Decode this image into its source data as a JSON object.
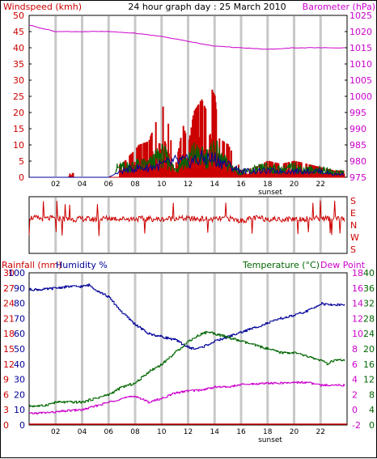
{
  "chart_data": [
    {
      "type": "bar",
      "title": "24 hour graph day : 25 March 2010",
      "left_axis_label": "Windspeed (kmh)",
      "right_axis_label": "Barometer (hPa)",
      "left_ylim": [
        0,
        50
      ],
      "right_ylim": [
        975,
        1025
      ],
      "left_ticks": [
        "0",
        "5",
        "10",
        "15",
        "20",
        "25",
        "30",
        "35",
        "40",
        "45",
        "50"
      ],
      "right_ticks": [
        "975",
        "980",
        "985",
        "990",
        "995",
        "1000",
        "1005",
        "1010",
        "1015",
        "1020",
        "1025"
      ],
      "x_ticks": [
        "02",
        "04",
        "06",
        "08",
        "10",
        "12",
        "14",
        "16",
        "18",
        "20",
        "22"
      ],
      "x_range_hours": [
        0,
        24
      ],
      "sunset_label": "sunset",
      "grid": true,
      "colors": {
        "gust": "#cc0000",
        "wind": "#006600",
        "avg": "#000099",
        "barometer": "#cc00cc"
      },
      "series": [
        {
          "key": "barometer",
          "x": [
            0,
            2,
            4,
            6,
            8,
            10,
            12,
            14,
            16,
            18,
            20,
            22,
            23.5
          ],
          "values": [
            1022,
            1020,
            1020,
            1020,
            1019.5,
            1018.5,
            1017,
            1015.5,
            1015,
            1014.5,
            1015,
            1015,
            1015
          ]
        },
        {
          "key": "gust",
          "x": [
            3,
            7,
            8.3,
            9,
            10,
            10.3,
            11,
            11.6,
            12,
            12.4,
            13,
            13.3,
            13.8,
            14,
            14.3,
            15,
            16,
            17,
            18,
            19,
            20,
            21,
            22,
            23
          ],
          "values": [
            1,
            4,
            10,
            11,
            22,
            21,
            3,
            16,
            10,
            20,
            24,
            21,
            27,
            25,
            12,
            10,
            2,
            3,
            5,
            4,
            5,
            4,
            3,
            2
          ]
        },
        {
          "key": "wind",
          "x": [
            3,
            7,
            8.3,
            9,
            10,
            10.3,
            11,
            11.6,
            12,
            12.4,
            13,
            13.3,
            13.8,
            14,
            14.3,
            15,
            16,
            17,
            18,
            19,
            20,
            21,
            22,
            23
          ],
          "values": [
            1,
            4,
            5,
            5,
            9,
            8,
            3,
            7,
            6,
            10,
            8,
            8,
            9,
            12,
            8,
            5,
            2,
            3,
            4,
            3,
            4,
            3,
            3,
            2
          ]
        },
        {
          "key": "avg",
          "x": [
            0,
            3,
            6,
            7,
            8,
            9,
            10,
            11,
            12,
            13,
            14,
            15,
            16,
            17,
            18,
            19,
            20,
            21,
            22,
            23,
            23.8
          ],
          "values": [
            0,
            0,
            0,
            2,
            3,
            3,
            4,
            5,
            5,
            6,
            6,
            4,
            2,
            2,
            2,
            2,
            2,
            2,
            2,
            1,
            1
          ]
        }
      ]
    },
    {
      "type": "line",
      "right_axis_label": "S E N W S",
      "direction_labels": [
        "S",
        "E",
        "N",
        "W",
        "S"
      ],
      "x_range_hours": [
        0,
        24
      ],
      "grid": true,
      "colors": {
        "direction": "#cc0000"
      },
      "series": [
        {
          "key": "direction",
          "x": [
            0,
            1,
            2,
            3,
            4,
            5,
            6,
            7,
            8,
            9,
            10,
            11,
            12,
            13,
            14,
            15,
            16,
            17,
            18,
            19,
            20,
            21,
            22,
            23,
            23.8
          ],
          "values": [
            235,
            225,
            230,
            220,
            225,
            220,
            230,
            225,
            225,
            225,
            220,
            230,
            225,
            225,
            220,
            230,
            210,
            230,
            225,
            220,
            225,
            225,
            230,
            225,
            220
          ]
        }
      ]
    },
    {
      "type": "line",
      "left_axis_labels": [
        "Rainfall (mm)",
        "Humidity %"
      ],
      "right_axis_labels": [
        "Temperature (°C)",
        "Dew Point"
      ],
      "rain_ticks": [
        "0",
        "3",
        "6",
        "9",
        "12",
        "15",
        "18",
        "21",
        "24",
        "27",
        "30"
      ],
      "humidity_ticks": [
        "0",
        "10",
        "20",
        "30",
        "40",
        "50",
        "60",
        "70",
        "80",
        "90",
        "100"
      ],
      "temp_ticks": [
        "0",
        "4",
        "8",
        "12",
        "16",
        "20",
        "24",
        "28",
        "32",
        "36",
        "40"
      ],
      "dew_ticks": [
        "-2",
        "0",
        "2",
        "4",
        "6",
        "8",
        "10",
        "12",
        "14",
        "16",
        "18"
      ],
      "x_ticks": [
        "02",
        "04",
        "06",
        "08",
        "10",
        "12",
        "14",
        "16",
        "18",
        "20",
        "22"
      ],
      "x_range_hours": [
        0,
        24
      ],
      "sunset_label": "sunset",
      "grid": true,
      "colors": {
        "humidity": "#000099",
        "temperature": "#006600",
        "dewpoint": "#cc00cc",
        "rainfall": "#cc0000"
      },
      "series": [
        {
          "key": "humidity",
          "name": "Humidity %",
          "x": [
            0,
            1,
            2,
            3,
            4,
            4.5,
            5,
            6,
            7,
            8,
            9,
            10,
            11,
            12,
            12.5,
            13,
            14,
            15,
            16,
            17,
            18,
            19,
            20,
            21,
            21.5,
            22,
            22.5,
            23,
            23.8
          ],
          "values": [
            89,
            89,
            90,
            91,
            91,
            92,
            89,
            84,
            74,
            66,
            60,
            58,
            56,
            51,
            50,
            51,
            55,
            58,
            61,
            64,
            67,
            70,
            72,
            75,
            77,
            80,
            79,
            79,
            79
          ]
        },
        {
          "key": "temperature",
          "name": "Temperature (°C)",
          "x": [
            0,
            1,
            2,
            3,
            4,
            5,
            6,
            7,
            8,
            9,
            10,
            11,
            12,
            13,
            13.5,
            14,
            15,
            16,
            17,
            18,
            19,
            20,
            21,
            22,
            22.5,
            23,
            23.8
          ],
          "values": [
            5,
            5,
            6,
            6,
            6,
            7,
            8,
            10,
            11,
            14,
            16,
            19,
            22,
            24,
            24.5,
            24,
            23,
            22,
            21,
            20,
            19,
            19,
            18,
            17,
            16,
            17,
            17
          ]
        },
        {
          "key": "dewpoint",
          "name": "Dew Point",
          "x": [
            0,
            1,
            2,
            3,
            4,
            5,
            6,
            7,
            8,
            9,
            10,
            11,
            12,
            13,
            14,
            15,
            16,
            17,
            18,
            19,
            20,
            21,
            22,
            23,
            23.8
          ],
          "values": [
            -0.5,
            -0.4,
            -0.3,
            -0.1,
            0,
            0.5,
            1,
            1.5,
            1.8,
            1,
            1.5,
            2.2,
            2.5,
            2.6,
            3,
            3,
            3.3,
            3.4,
            3.5,
            3.5,
            3.6,
            3.6,
            3.2,
            3.3,
            3.2
          ]
        },
        {
          "key": "rainfall",
          "name": "Rainfall (mm)",
          "x": [
            0,
            24
          ],
          "values": [
            0,
            0
          ]
        }
      ]
    }
  ]
}
